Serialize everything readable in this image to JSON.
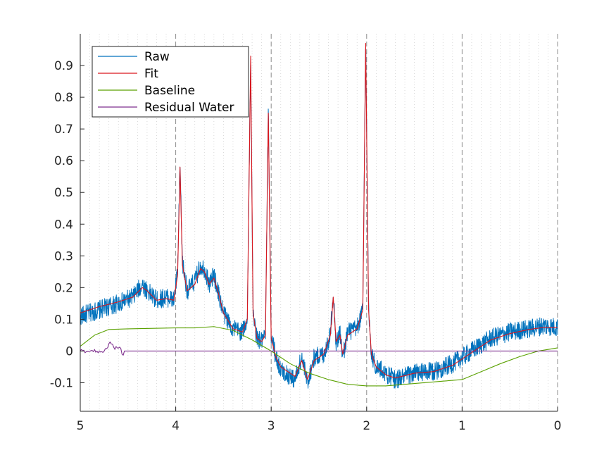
{
  "chart_data": {
    "type": "line",
    "title": "",
    "xlabel": "",
    "ylabel": "",
    "xlim": [
      5,
      0
    ],
    "ylim": [
      -0.19,
      1.0
    ],
    "x_reversed": true,
    "x_ticks": [
      5,
      4,
      3,
      2,
      1,
      0
    ],
    "x_tick_labels": [
      "5",
      "4",
      "3",
      "2",
      "1",
      "0"
    ],
    "y_ticks": [
      -0.1,
      0,
      0.1,
      0.2,
      0.3,
      0.4,
      0.5,
      0.6,
      0.7,
      0.8,
      0.9
    ],
    "y_tick_labels": [
      "-0.1",
      "0",
      "0.1",
      "0.2",
      "0.3",
      "0.4",
      "0.5",
      "0.6",
      "0.7",
      "0.8",
      "0.9"
    ],
    "grid": {
      "major_x": "dashed",
      "minor_x": "dotted"
    },
    "legend_position": "top-left",
    "series": [
      {
        "name": "Raw",
        "color": "#0072bd",
        "noise": 0.03,
        "points": [
          [
            5.0,
            0.11
          ],
          [
            4.8,
            0.13
          ],
          [
            4.6,
            0.15
          ],
          [
            4.45,
            0.17
          ],
          [
            4.35,
            0.21
          ],
          [
            4.3,
            0.19
          ],
          [
            4.2,
            0.16
          ],
          [
            4.1,
            0.17
          ],
          [
            4.02,
            0.16
          ],
          [
            3.98,
            0.25
          ],
          [
            3.955,
            0.59
          ],
          [
            3.93,
            0.28
          ],
          [
            3.88,
            0.19
          ],
          [
            3.8,
            0.22
          ],
          [
            3.74,
            0.27
          ],
          [
            3.7,
            0.26
          ],
          [
            3.65,
            0.21
          ],
          [
            3.6,
            0.24
          ],
          [
            3.55,
            0.18
          ],
          [
            3.5,
            0.12
          ],
          [
            3.4,
            0.07
          ],
          [
            3.3,
            0.06
          ],
          [
            3.25,
            0.1
          ],
          [
            3.215,
            0.93
          ],
          [
            3.19,
            0.12
          ],
          [
            3.15,
            0.04
          ],
          [
            3.1,
            0.03
          ],
          [
            3.06,
            0.05
          ],
          [
            3.03,
            0.76
          ],
          [
            3.0,
            0.05
          ],
          [
            2.95,
            -0.02
          ],
          [
            2.9,
            -0.06
          ],
          [
            2.85,
            -0.07
          ],
          [
            2.75,
            -0.09
          ],
          [
            2.68,
            -0.02
          ],
          [
            2.62,
            -0.1
          ],
          [
            2.55,
            -0.02
          ],
          [
            2.45,
            -0.01
          ],
          [
            2.38,
            0.05
          ],
          [
            2.35,
            0.19
          ],
          [
            2.32,
            0.02
          ],
          [
            2.28,
            0.06
          ],
          [
            2.25,
            -0.02
          ],
          [
            2.2,
            0.06
          ],
          [
            2.1,
            0.07
          ],
          [
            2.04,
            0.13
          ],
          [
            2.01,
            0.98
          ],
          [
            1.98,
            0.14
          ],
          [
            1.95,
            -0.01
          ],
          [
            1.9,
            -0.05
          ],
          [
            1.8,
            -0.07
          ],
          [
            1.7,
            -0.09
          ],
          [
            1.5,
            -0.07
          ],
          [
            1.3,
            -0.065
          ],
          [
            1.1,
            -0.04
          ],
          [
            0.9,
            0.0
          ],
          [
            0.7,
            0.04
          ],
          [
            0.5,
            0.06
          ],
          [
            0.3,
            0.07
          ],
          [
            0.15,
            0.08
          ],
          [
            0.0,
            0.075
          ]
        ]
      },
      {
        "name": "Fit",
        "color": "#d9171e",
        "noise": 0,
        "points": [
          [
            5.0,
            0.12
          ],
          [
            4.8,
            0.14
          ],
          [
            4.6,
            0.155
          ],
          [
            4.45,
            0.17
          ],
          [
            4.35,
            0.2
          ],
          [
            4.3,
            0.19
          ],
          [
            4.2,
            0.16
          ],
          [
            4.1,
            0.165
          ],
          [
            4.02,
            0.16
          ],
          [
            3.98,
            0.24
          ],
          [
            3.955,
            0.58
          ],
          [
            3.93,
            0.27
          ],
          [
            3.88,
            0.19
          ],
          [
            3.8,
            0.21
          ],
          [
            3.74,
            0.26
          ],
          [
            3.7,
            0.25
          ],
          [
            3.65,
            0.21
          ],
          [
            3.6,
            0.23
          ],
          [
            3.55,
            0.18
          ],
          [
            3.5,
            0.12
          ],
          [
            3.4,
            0.07
          ],
          [
            3.3,
            0.06
          ],
          [
            3.25,
            0.1
          ],
          [
            3.215,
            0.93
          ],
          [
            3.19,
            0.12
          ],
          [
            3.15,
            0.04
          ],
          [
            3.1,
            0.03
          ],
          [
            3.06,
            0.05
          ],
          [
            3.03,
            0.75
          ],
          [
            3.0,
            0.04
          ],
          [
            2.95,
            -0.02
          ],
          [
            2.9,
            -0.05
          ],
          [
            2.85,
            -0.06
          ],
          [
            2.75,
            -0.08
          ],
          [
            2.68,
            -0.03
          ],
          [
            2.62,
            -0.09
          ],
          [
            2.55,
            -0.03
          ],
          [
            2.45,
            -0.01
          ],
          [
            2.38,
            0.05
          ],
          [
            2.35,
            0.17
          ],
          [
            2.32,
            0.03
          ],
          [
            2.28,
            0.05
          ],
          [
            2.25,
            -0.01
          ],
          [
            2.2,
            0.05
          ],
          [
            2.1,
            0.07
          ],
          [
            2.04,
            0.13
          ],
          [
            2.01,
            0.97
          ],
          [
            1.98,
            0.13
          ],
          [
            1.95,
            -0.01
          ],
          [
            1.9,
            -0.05
          ],
          [
            1.8,
            -0.075
          ],
          [
            1.7,
            -0.085
          ],
          [
            1.5,
            -0.07
          ],
          [
            1.3,
            -0.065
          ],
          [
            1.1,
            -0.045
          ],
          [
            0.9,
            -0.005
          ],
          [
            0.7,
            0.035
          ],
          [
            0.5,
            0.055
          ],
          [
            0.3,
            0.068
          ],
          [
            0.15,
            0.074
          ],
          [
            0.0,
            0.075
          ]
        ]
      },
      {
        "name": "Baseline",
        "color": "#5aa100",
        "noise": 0,
        "points": [
          [
            5.0,
            0.015
          ],
          [
            4.85,
            0.05
          ],
          [
            4.7,
            0.068
          ],
          [
            4.5,
            0.07
          ],
          [
            4.0,
            0.073
          ],
          [
            3.8,
            0.073
          ],
          [
            3.6,
            0.077
          ],
          [
            3.4,
            0.065
          ],
          [
            3.2,
            0.035
          ],
          [
            3.0,
            0.0
          ],
          [
            2.8,
            -0.04
          ],
          [
            2.6,
            -0.07
          ],
          [
            2.4,
            -0.09
          ],
          [
            2.2,
            -0.105
          ],
          [
            2.0,
            -0.11
          ],
          [
            1.8,
            -0.11
          ],
          [
            1.6,
            -0.105
          ],
          [
            1.4,
            -0.1
          ],
          [
            1.2,
            -0.095
          ],
          [
            1.0,
            -0.09
          ],
          [
            0.8,
            -0.065
          ],
          [
            0.6,
            -0.04
          ],
          [
            0.4,
            -0.018
          ],
          [
            0.2,
            0.0
          ],
          [
            0.0,
            0.01
          ]
        ]
      },
      {
        "name": "Residual Water",
        "color": "#7e2f8e",
        "noise": 0.006,
        "points": [
          [
            5.0,
            0.0
          ],
          [
            4.75,
            0.0
          ],
          [
            4.72,
            0.01
          ],
          [
            4.7,
            0.025
          ],
          [
            4.67,
            0.02
          ],
          [
            4.64,
            0.005
          ],
          [
            4.6,
            0.015
          ],
          [
            4.57,
            0.0
          ],
          [
            4.55,
            -0.015
          ],
          [
            4.54,
            0.0
          ],
          [
            0.0,
            0.0
          ]
        ]
      }
    ]
  },
  "colors": {
    "axis": "#262626",
    "grid": "#8c8c8c"
  }
}
